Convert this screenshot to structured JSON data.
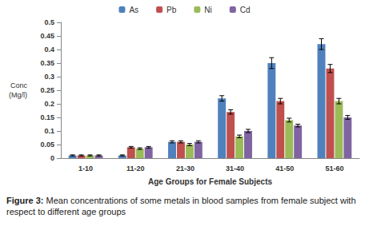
{
  "chart_data": {
    "type": "bar",
    "caption": "Figure 3: Mean concentrations of some metals in blood samples from  female subject with respect  to different age groups",
    "x_label": "Age Groups for Female Subjects",
    "y_label": "Conc\n(Mg/l)",
    "categories": [
      "1-10",
      "11-20",
      "21-30",
      "31-40",
      "41-50",
      "51-60"
    ],
    "series": [
      {
        "name": "As",
        "color": "#4f81bd",
        "values": [
          0.01,
          0.01,
          0.06,
          0.22,
          0.35,
          0.42
        ],
        "errors": [
          0.002,
          0.002,
          0.004,
          0.01,
          0.02,
          0.02
        ]
      },
      {
        "name": "Pb",
        "color": "#c0504d",
        "values": [
          0.01,
          0.04,
          0.06,
          0.17,
          0.21,
          0.33
        ],
        "errors": [
          0.002,
          0.003,
          0.004,
          0.008,
          0.01,
          0.015
        ]
      },
      {
        "name": "Ni",
        "color": "#9bbb59",
        "values": [
          0.01,
          0.035,
          0.05,
          0.08,
          0.14,
          0.21
        ],
        "errors": [
          0.002,
          0.003,
          0.004,
          0.005,
          0.007,
          0.01
        ]
      },
      {
        "name": "Cd",
        "color": "#8064a2",
        "values": [
          0.01,
          0.04,
          0.06,
          0.1,
          0.12,
          0.15
        ],
        "errors": [
          0.002,
          0.003,
          0.004,
          0.006,
          0.005,
          0.007
        ]
      }
    ],
    "ylim": [
      0,
      0.5
    ],
    "yticks": [
      0,
      0.05,
      0.1,
      0.15,
      0.2,
      0.25,
      0.3,
      0.35,
      0.4,
      0.45,
      0.5
    ],
    "grid": false,
    "legend": "top"
  }
}
